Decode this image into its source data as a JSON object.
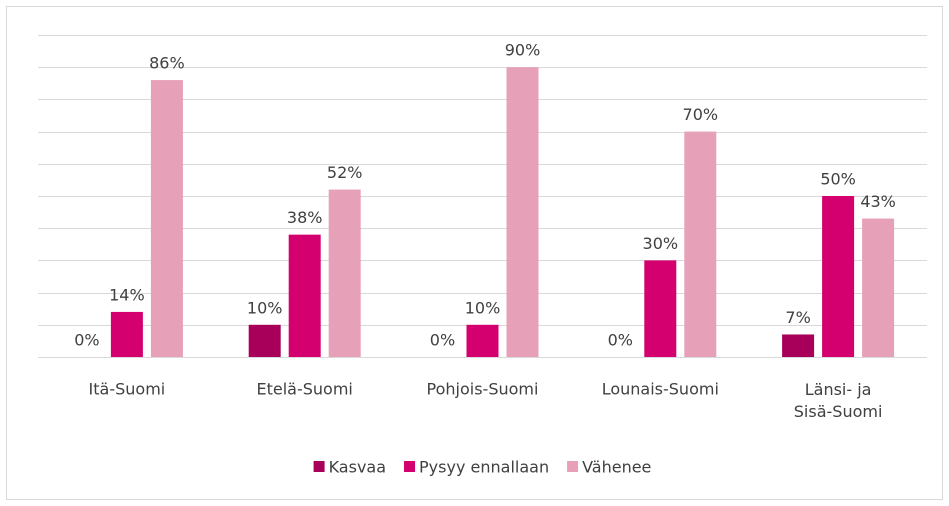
{
  "chart_data": {
    "type": "bar",
    "categories": [
      "Itä-Suomi",
      "Etelä-Suomi",
      "Pohjois-Suomi",
      "Lounais-Suomi",
      "Länsi- ja Sisä-Suomi"
    ],
    "series": [
      {
        "name": "Kasvaa",
        "color": "#a8005a",
        "values": [
          0,
          10,
          0,
          0,
          7
        ],
        "value_labels": [
          "0%",
          "10%",
          "0%",
          "0%",
          "7%"
        ]
      },
      {
        "name": "Pysyy ennallaan",
        "color": "#d4006f",
        "values": [
          14,
          38,
          10,
          30,
          50
        ],
        "value_labels": [
          "14%",
          "38%",
          "10%",
          "30%",
          "50%"
        ]
      },
      {
        "name": "Vähenee",
        "color": "#e6a0b8",
        "values": [
          86,
          52,
          90,
          70,
          43
        ],
        "value_labels": [
          "86%",
          "52%",
          "90%",
          "70%",
          "43%"
        ]
      }
    ],
    "ylim": [
      0,
      100
    ],
    "yticks": [
      0,
      10,
      20,
      30,
      40,
      50,
      60,
      70,
      80,
      90,
      100
    ],
    "grid": true,
    "legend": "bottom"
  }
}
